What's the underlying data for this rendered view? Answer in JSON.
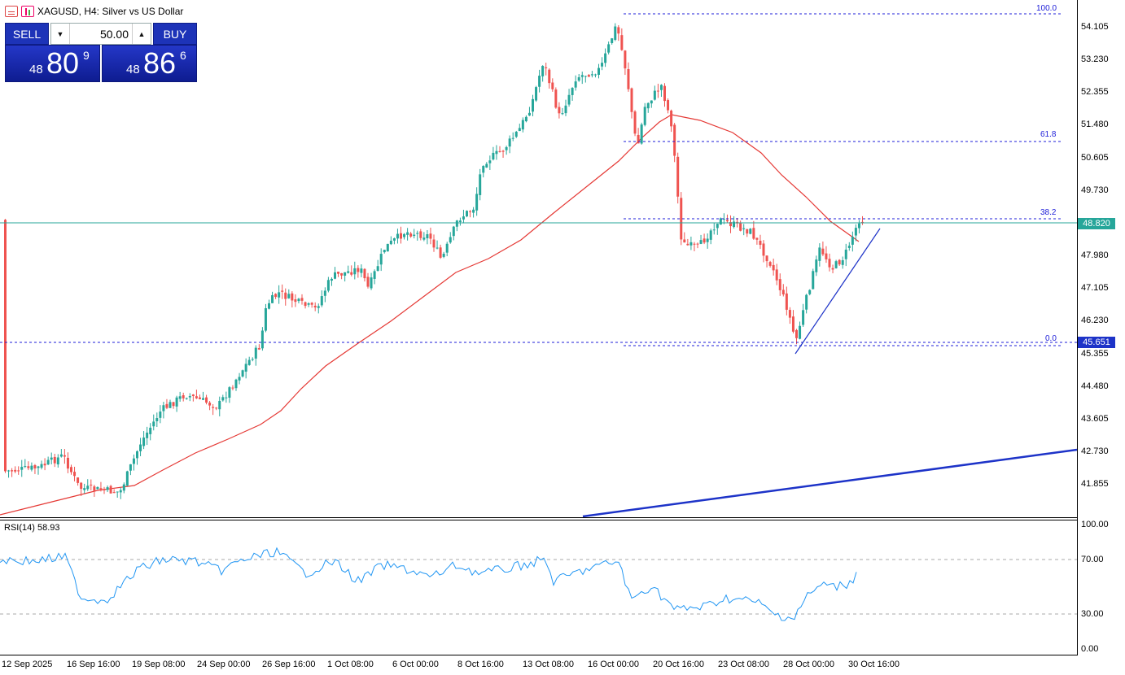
{
  "header": {
    "title": "XAGUSD, H4:  Silver vs US Dollar"
  },
  "trade_panel": {
    "sell_label": "SELL",
    "buy_label": "BUY",
    "lot": "50.00",
    "bid": {
      "prefix": "48",
      "big": "80",
      "sup": "9"
    },
    "ask": {
      "prefix": "48",
      "big": "86",
      "sup": "6"
    }
  },
  "price_axis": [
    "54.105",
    "53.230",
    "52.355",
    "51.480",
    "50.605",
    "49.730",
    "47.980",
    "47.105",
    "46.230",
    "45.355",
    "44.480",
    "43.605",
    "42.730",
    "41.855"
  ],
  "price_tags": {
    "current": "48.820",
    "low": "45.651"
  },
  "fibonacci": {
    "levels": [
      "100.0",
      "61.8",
      "38.2",
      "0.0"
    ]
  },
  "rsi": {
    "label": "RSI(14) 58.93",
    "axis": [
      "100.00",
      "70.00",
      "30.00",
      "0.00"
    ]
  },
  "time_axis": [
    "12 Sep 2025",
    "16 Sep 16:00",
    "19 Sep 08:00",
    "24 Sep 00:00",
    "26 Sep 16:00",
    "1 Oct 08:00",
    "6 Oct 00:00",
    "8 Oct 16:00",
    "13 Oct 08:00",
    "16 Oct 00:00",
    "20 Oct 16:00",
    "23 Oct 08:00",
    "28 Oct 00:00",
    "30 Oct 16:00"
  ],
  "colors": {
    "bull": "#26a69a",
    "bear": "#ef5350",
    "ma": "#e53935",
    "rsi": "#2196f3",
    "fib": "#1d1dd8",
    "trend": "#1d33c8",
    "current_line": "#26a69a"
  }
}
